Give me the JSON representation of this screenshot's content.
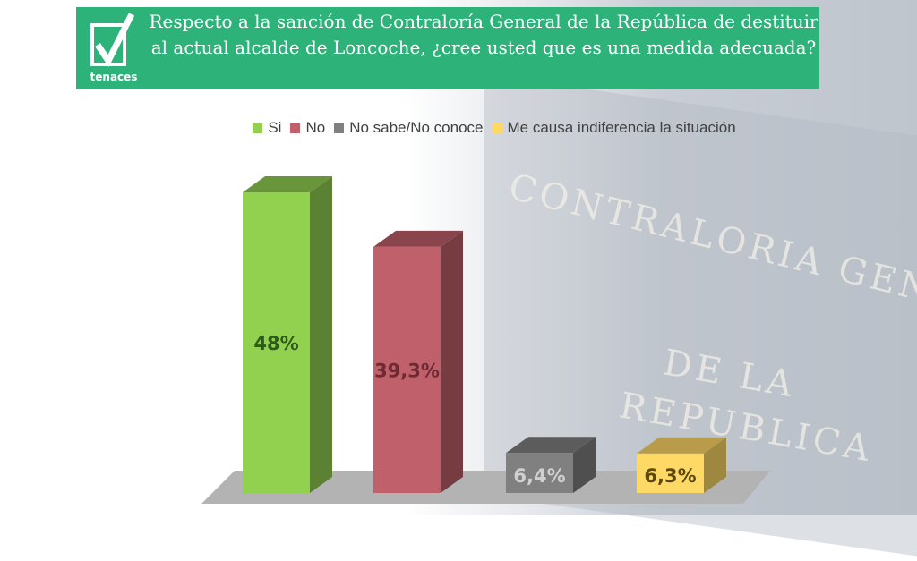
{
  "header": {
    "title": "Respecto a la sanción de Contraloría General de la República de destituir al actual alcalde de Loncoche, ¿cree usted que es una medida adecuada?",
    "logo_text": "tenaces",
    "color": "#2db27a"
  },
  "background_photo_text": [
    "CONTRALORIA GENERAL",
    "DE LA",
    "REPUBLICA"
  ],
  "chart_data": {
    "type": "bar",
    "style": "3d",
    "title": "Respecto a la sanción de Contraloría General de la República de destituir al actual alcalde de Loncoche, ¿cree usted que es una medida adecuada?",
    "categories": [
      "Si",
      "No",
      "No sabe/No conoce",
      "Me causa indiferencia la situación"
    ],
    "values": [
      48,
      39.3,
      6.4,
      6.3
    ],
    "data_labels": [
      "48%",
      "39,3%",
      "6,4%",
      "6,3%"
    ],
    "colors": [
      "#92d050",
      "#c0606a",
      "#808080",
      "#ffd966"
    ],
    "label_colors": [
      "#2d5a1a",
      "#6e2a32",
      "#d0d0d0",
      "#5a4a10"
    ],
    "legend_position": "top",
    "grid": false,
    "xlabel": "",
    "ylabel": ""
  }
}
